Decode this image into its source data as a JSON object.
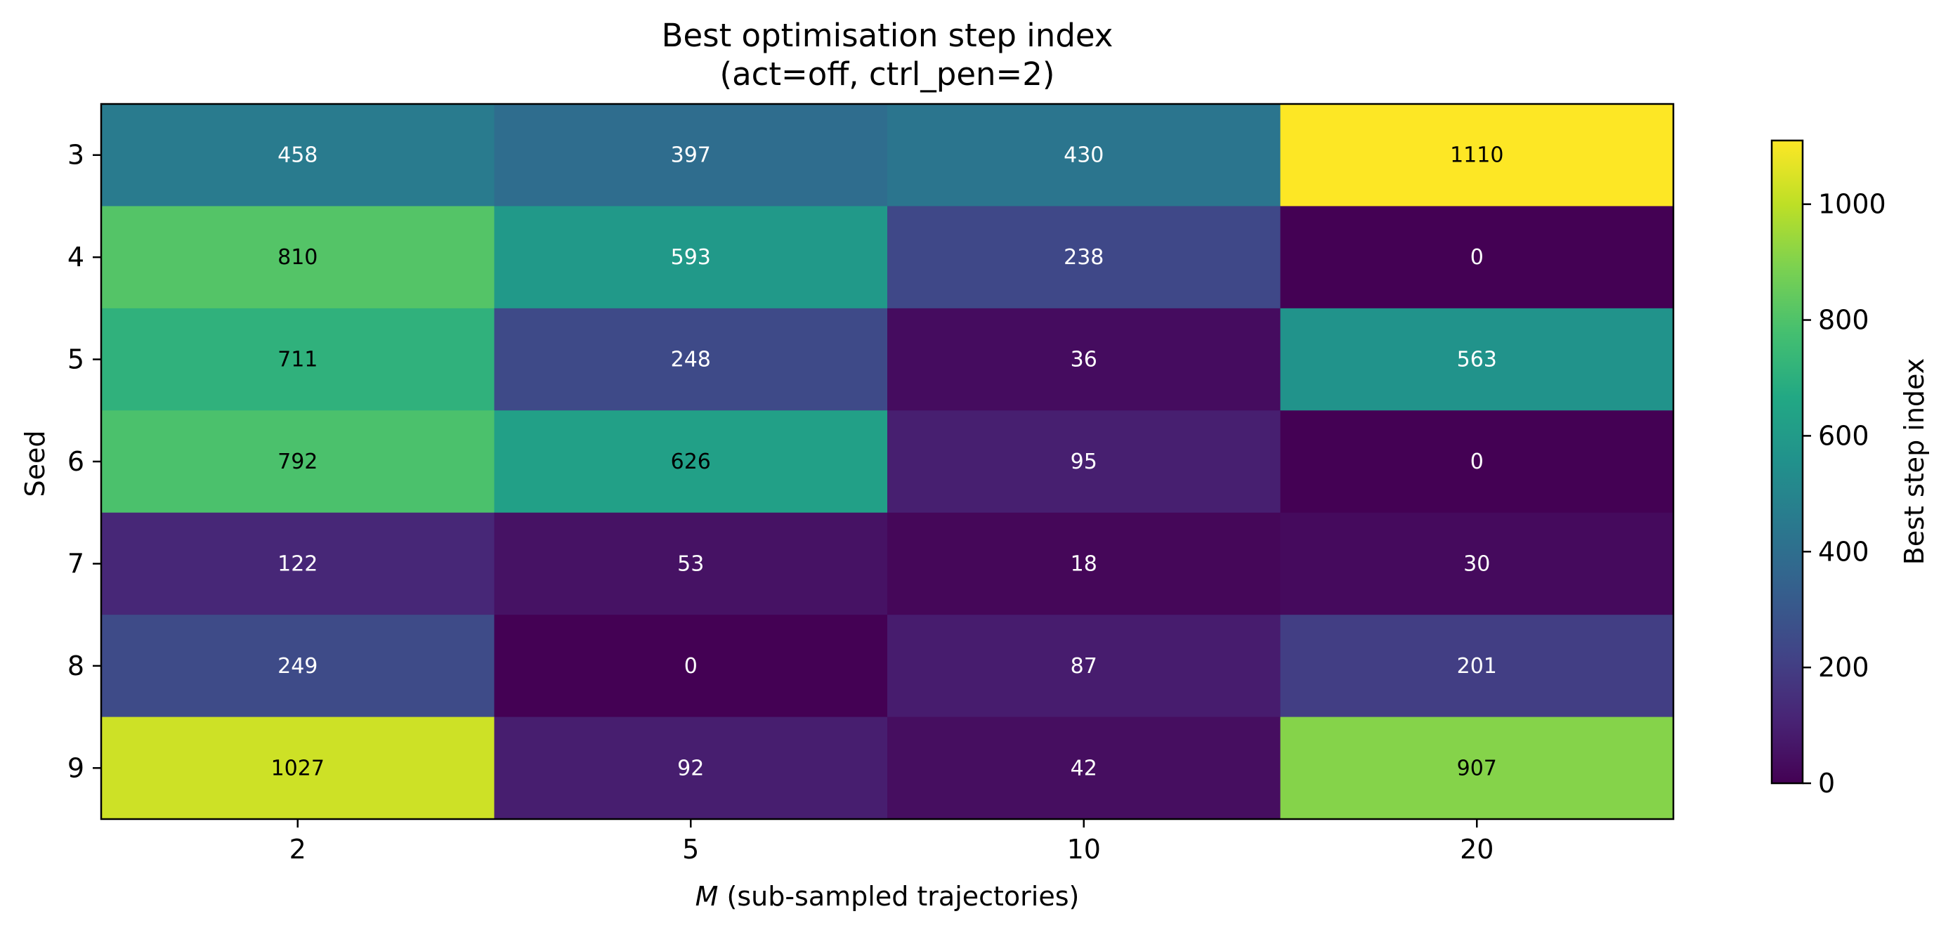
{
  "chart_data": {
    "type": "heatmap",
    "title": "Best optimisation step index",
    "subtitle": "(act=off, ctrl_pen=2)",
    "xlabel_italic": "M",
    "xlabel_rest": " (sub-sampled trajectories)",
    "ylabel": "Seed",
    "x_categories": [
      "2",
      "5",
      "10",
      "20"
    ],
    "y_categories": [
      "3",
      "4",
      "5",
      "6",
      "7",
      "8",
      "9"
    ],
    "values": [
      [
        458,
        397,
        430,
        1110
      ],
      [
        810,
        593,
        238,
        0
      ],
      [
        711,
        248,
        36,
        563
      ],
      [
        792,
        626,
        95,
        0
      ],
      [
        122,
        53,
        18,
        30
      ],
      [
        249,
        0,
        87,
        201
      ],
      [
        1027,
        92,
        42,
        907
      ]
    ],
    "colormap": "viridis",
    "vmin": 0,
    "vmax": 1110,
    "colorbar": {
      "label": "Best step index",
      "ticks": [
        0,
        200,
        400,
        600,
        800,
        1000
      ]
    },
    "cell_text_colors": {
      "dark": "#ffffff",
      "light": "#000000"
    },
    "grid": false
  }
}
